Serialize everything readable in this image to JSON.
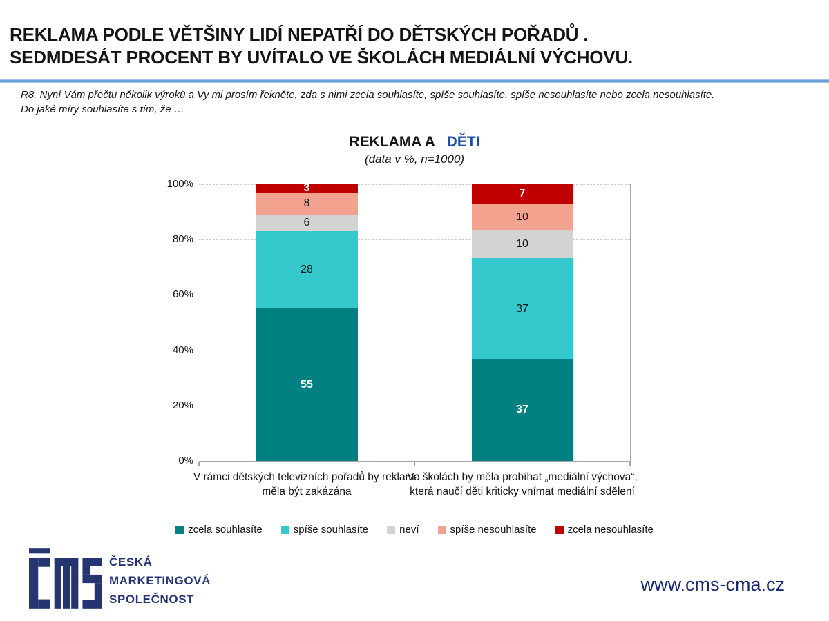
{
  "page": {
    "title_line1": "REKLAMA PODLE VĚTŠINY LIDÍ NEPATŘÍ DO DĚTSKÝCH POŘADŮ .",
    "title_line2": "SEDMDESÁT PROCENT BY UVÍTALO VE ŠKOLÁCH MEDIÁLNÍ VÝCHOVU.",
    "question_line1": "R8. Nyní Vám přečtu několik výroků a Vy mi prosím řekněte, zda s nimi zcela souhlasíte, spíše souhlasíte, spíše nesouhlasíte nebo zcela nesouhlasíte.",
    "question_line2": "Do jaké míry souhlasíte s tím, že …"
  },
  "chart_data": {
    "type": "bar",
    "stacked": true,
    "percent_stacked": true,
    "title_black": "REKLAMA A",
    "title_blue": "DĚTI",
    "subtitle": "(data v %, n=1000)",
    "categories": [
      "V rámci dětských televizních pořadů by reklama měla být zakázána",
      "Ve školách by měla probíhat „mediální výchova“, která naučí děti kriticky vnímat mediální sdělení"
    ],
    "series": [
      {
        "name": "zcela souhlasíte",
        "color": "#008080",
        "label_color": "#ffffff",
        "values": [
          55,
          37
        ]
      },
      {
        "name": "spíše souhlasíte",
        "color": "#35c8cc",
        "label_color": "#141414",
        "values": [
          28,
          37
        ]
      },
      {
        "name": "neví",
        "color": "#d3d3d3",
        "label_color": "#141414",
        "values": [
          6,
          10
        ]
      },
      {
        "name": "spíše nesouhlasíte",
        "color": "#f2a28e",
        "label_color": "#141414",
        "values": [
          8,
          10
        ]
      },
      {
        "name": "zcela nesouhlasíte",
        "color": "#c00000",
        "label_color": "#ffffff",
        "values": [
          3,
          7
        ]
      }
    ],
    "y_ticks": [
      "0%",
      "20%",
      "40%",
      "60%",
      "80%",
      "100%"
    ],
    "ylim": [
      0,
      100
    ],
    "grid": "horizontal-dashed",
    "legend_position": "bottom"
  },
  "footer": {
    "logo_monogram": "ČMS",
    "logo_text_lines": [
      "ČESKÁ",
      "MARKETINGOVÁ",
      "SPOLEČNOST"
    ],
    "website": "www.cms-cma.cz"
  },
  "colors": {
    "title_text": "#141414",
    "title_accent_blue": "#1f4ea8",
    "divider_blue": "#5e97d0",
    "axis_gray": "#a6a6a6",
    "gridline_gray": "#c9c9c9",
    "logo_navy": "#243572",
    "website_navy": "#1a2870"
  }
}
